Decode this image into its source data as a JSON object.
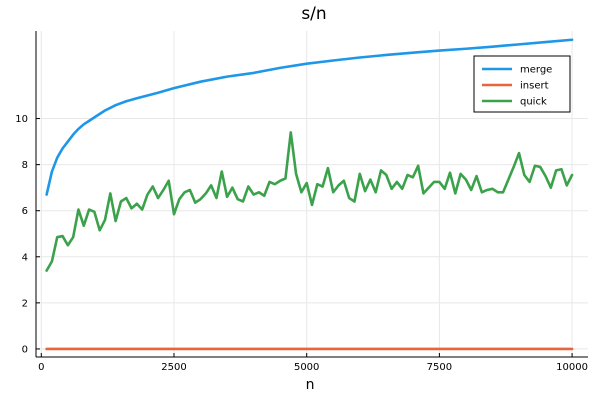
{
  "chart_data": {
    "type": "line",
    "title": "s/n",
    "xlabel": "n",
    "ylabel": "",
    "xlim": [
      -100,
      10300
    ],
    "ylim": [
      -0.35,
      13.8
    ],
    "xticks": [
      0,
      2500,
      5000,
      7500,
      10000
    ],
    "xtick_labels": [
      "0",
      "2500",
      "5000",
      "7500",
      "10000"
    ],
    "yticks": [
      0,
      2,
      4,
      6,
      8,
      10
    ],
    "ytick_labels": [
      "0",
      "2",
      "4",
      "6",
      "8",
      "10"
    ],
    "grid": true,
    "legend_position": "top-right",
    "colors": {
      "merge": "#1f97e8",
      "insert": "#e8643c",
      "quick": "#3ba24b",
      "grid": "#e8e8e8",
      "axis": "#000000"
    },
    "series": [
      {
        "name": "merge",
        "x": [
          100,
          200,
          300,
          400,
          500,
          600,
          700,
          800,
          900,
          1000,
          1200,
          1400,
          1600,
          1800,
          2000,
          2200,
          2500,
          3000,
          3500,
          4000,
          4500,
          5000,
          5500,
          6000,
          6500,
          7000,
          7500,
          8000,
          8500,
          9000,
          9500,
          10000
        ],
        "y": [
          6.7,
          7.7,
          8.3,
          8.7,
          9.0,
          9.3,
          9.55,
          9.75,
          9.9,
          10.05,
          10.35,
          10.58,
          10.75,
          10.88,
          11.0,
          11.12,
          11.32,
          11.6,
          11.82,
          11.98,
          12.2,
          12.38,
          12.52,
          12.65,
          12.76,
          12.86,
          12.95,
          13.03,
          13.12,
          13.22,
          13.32,
          13.42
        ]
      },
      {
        "name": "insert",
        "x": [
          100,
          10000
        ],
        "y": [
          0.0,
          0.0
        ]
      },
      {
        "name": "quick",
        "x": [
          100,
          200,
          300,
          400,
          500,
          600,
          700,
          800,
          900,
          1000,
          1100,
          1200,
          1300,
          1400,
          1500,
          1600,
          1700,
          1800,
          1900,
          2000,
          2100,
          2200,
          2300,
          2400,
          2500,
          2600,
          2700,
          2800,
          2900,
          3000,
          3100,
          3200,
          3300,
          3400,
          3500,
          3600,
          3700,
          3800,
          3900,
          4000,
          4100,
          4200,
          4300,
          4400,
          4500,
          4600,
          4700,
          4800,
          4900,
          5000,
          5100,
          5200,
          5300,
          5400,
          5500,
          5600,
          5700,
          5800,
          5900,
          6000,
          6100,
          6200,
          6300,
          6400,
          6500,
          6600,
          6700,
          6800,
          6900,
          7000,
          7100,
          7200,
          7300,
          7400,
          7500,
          7600,
          7700,
          7800,
          7900,
          8000,
          8100,
          8200,
          8300,
          8400,
          8500,
          8600,
          8700,
          8800,
          8900,
          9000,
          9100,
          9200,
          9300,
          9400,
          9500,
          9600,
          9700,
          9800,
          9900,
          10000
        ],
        "y": [
          3.4,
          3.8,
          4.85,
          4.9,
          4.5,
          4.85,
          6.05,
          5.35,
          6.05,
          5.95,
          5.15,
          5.6,
          6.75,
          5.55,
          6.4,
          6.55,
          6.1,
          6.3,
          6.05,
          6.7,
          7.05,
          6.55,
          6.9,
          7.3,
          5.85,
          6.5,
          6.8,
          6.9,
          6.35,
          6.5,
          6.75,
          7.1,
          6.55,
          7.7,
          6.6,
          7.0,
          6.5,
          6.4,
          7.05,
          6.7,
          6.8,
          6.65,
          7.25,
          7.15,
          7.3,
          7.4,
          9.4,
          7.6,
          6.8,
          7.2,
          6.25,
          7.15,
          7.05,
          7.85,
          6.8,
          7.1,
          7.3,
          6.55,
          6.4,
          7.6,
          6.85,
          7.35,
          6.8,
          7.75,
          7.55,
          6.95,
          7.25,
          6.95,
          7.55,
          7.45,
          7.95,
          6.75,
          7.0,
          7.25,
          7.25,
          6.95,
          7.65,
          6.75,
          7.6,
          7.35,
          6.9,
          7.5,
          6.8,
          6.9,
          6.95,
          6.8,
          6.8,
          7.35,
          7.9,
          8.5,
          7.55,
          7.25,
          7.95,
          7.9,
          7.5,
          7.0,
          7.75,
          7.8,
          7.1,
          7.55
        ]
      }
    ]
  }
}
